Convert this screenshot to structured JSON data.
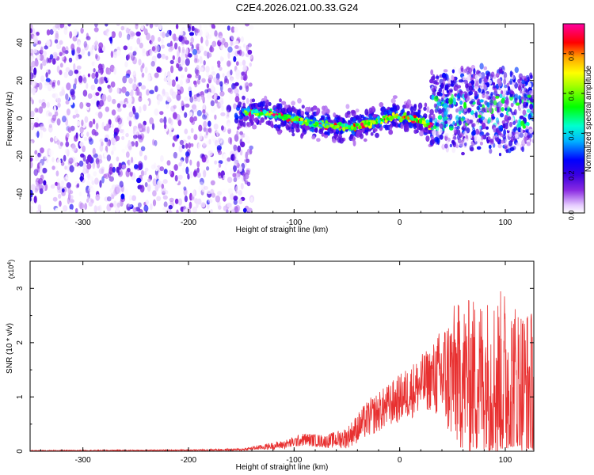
{
  "page_title": "C2E4.2026.021.00.33.G24",
  "chart_data": [
    {
      "type": "heatmap",
      "title": "C2E4.2026.021.00.33.G24",
      "xlabel": "Height of straight line (km)",
      "ylabel": "Frequency (Hz)",
      "xlim": [
        -350,
        127
      ],
      "ylim": [
        -50,
        50
      ],
      "xticks": [
        -300,
        -200,
        -100,
        0,
        100
      ],
      "yticks": [
        -40,
        -20,
        0,
        20,
        40
      ],
      "colorbar": {
        "label": "Normalized spectral amplitude",
        "range": [
          0.0,
          0.95
        ],
        "ticks": [
          0.0,
          0.2,
          0.4,
          0.6,
          0.8
        ],
        "tick_labels": [
          "0.0",
          "0.2",
          "0.4",
          "0.6",
          "0.8"
        ]
      },
      "regions": [
        {
          "name": "noise",
          "x_range": [
            -350,
            -140
          ],
          "frequency_range": [
            -50,
            50
          ],
          "amplitude": 0.2
        },
        {
          "name": "signal-track",
          "x_range": [
            -155,
            32
          ],
          "frequency_center": [
            [
              -155,
              4
            ],
            [
              -120,
              2
            ],
            [
              -80,
              -3
            ],
            [
              -45,
              -5
            ],
            [
              -25,
              -2
            ],
            [
              -5,
              1
            ],
            [
              20,
              -1
            ],
            [
              32,
              -5
            ]
          ],
          "amplitude": 0.5
        },
        {
          "name": "scatter",
          "x_range": [
            30,
            127
          ],
          "frequency_range": [
            -15,
            25
          ],
          "amplitude": 0.3
        }
      ]
    },
    {
      "type": "line",
      "xlabel": "Height of straight line (km)",
      "ylabel": "SNR (10 * v/v)",
      "y_multiplier": "(x10",
      "y_multiplier_exp": "4",
      "y_multiplier_close": ")",
      "xlim": [
        -350,
        127
      ],
      "ylim": [
        0,
        3.5
      ],
      "xticks": [
        -300,
        -200,
        -100,
        0,
        100
      ],
      "yticks": [
        0,
        1,
        2,
        3
      ],
      "series": [
        {
          "name": "SNR",
          "color": "#e83030",
          "envelope_x": [
            -350,
            -200,
            -150,
            -110,
            -90,
            -70,
            -50,
            -30,
            -10,
            10,
            30,
            50,
            70,
            90,
            100,
            110,
            127
          ],
          "envelope_mean": [
            0.01,
            0.02,
            0.03,
            0.12,
            0.22,
            0.18,
            0.25,
            0.6,
            0.85,
            1.1,
            1.35,
            1.4,
            1.35,
            1.3,
            1.25,
            1.2,
            1.1
          ],
          "envelope_spread": [
            0.01,
            0.01,
            0.02,
            0.08,
            0.12,
            0.12,
            0.2,
            0.35,
            0.4,
            0.5,
            0.6,
            1.3,
            1.5,
            1.6,
            1.8,
            1.6,
            1.5
          ]
        }
      ]
    }
  ]
}
